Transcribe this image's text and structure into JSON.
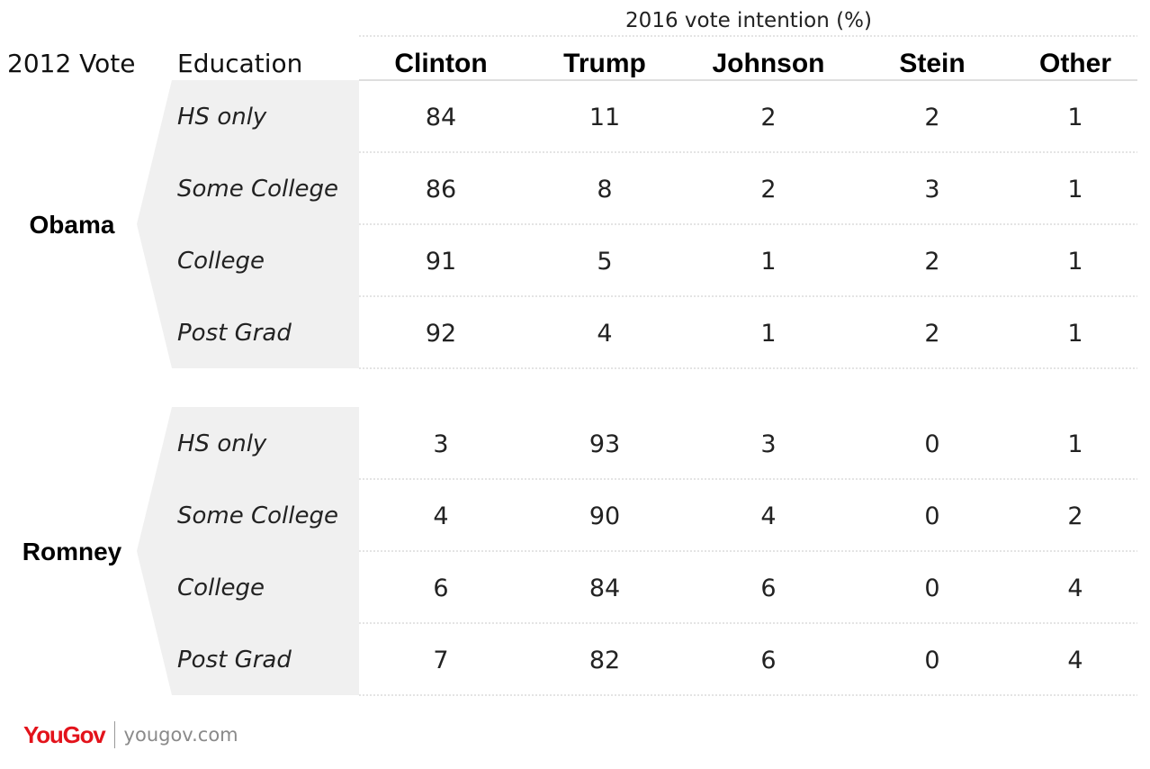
{
  "chart_data": {
    "type": "table",
    "title": "2016 vote intention (%)",
    "row_group_header": "2012 Vote",
    "row_header": "Education",
    "columns": [
      "Clinton",
      "Trump",
      "Johnson",
      "Stein",
      "Other"
    ],
    "groups": [
      {
        "name": "Obama",
        "rows": [
          {
            "label": "HS only",
            "values": [
              84,
              11,
              2,
              2,
              1
            ]
          },
          {
            "label": "Some College",
            "values": [
              86,
              8,
              2,
              3,
              1
            ]
          },
          {
            "label": "College",
            "values": [
              91,
              5,
              1,
              2,
              1
            ]
          },
          {
            "label": "Post Grad",
            "values": [
              92,
              4,
              1,
              2,
              1
            ]
          }
        ]
      },
      {
        "name": "Romney",
        "rows": [
          {
            "label": "HS only",
            "values": [
              3,
              93,
              3,
              0,
              1
            ]
          },
          {
            "label": "Some College",
            "values": [
              4,
              90,
              4,
              0,
              2
            ]
          },
          {
            "label": "College",
            "values": [
              6,
              84,
              6,
              0,
              4
            ]
          },
          {
            "label": "Post Grad",
            "values": [
              7,
              82,
              6,
              0,
              4
            ]
          }
        ]
      }
    ]
  },
  "footer": {
    "logo_text": "YouGov",
    "site": "yougov.com"
  }
}
